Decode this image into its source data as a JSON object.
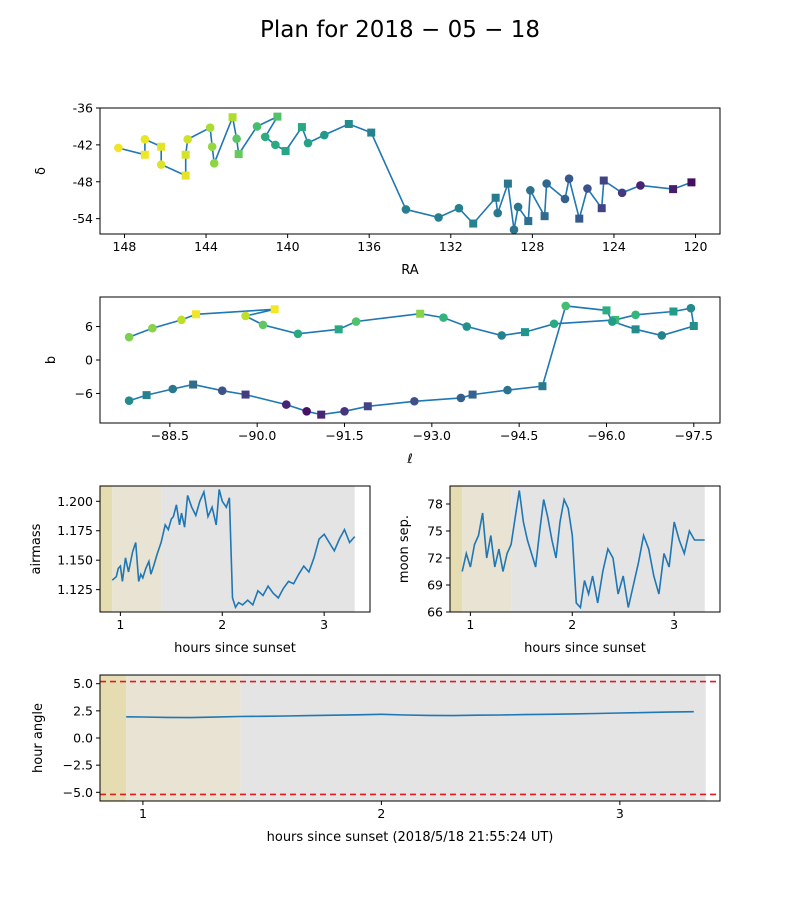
{
  "figure": {
    "title": "Plan for 2018 − 05 − 18"
  },
  "chart_data": [
    {
      "id": "radec",
      "type": "scatter",
      "xlabel": "RA",
      "ylabel": "δ",
      "xlim": [
        149.2,
        118.8
      ],
      "ylim": [
        -56.5,
        -36
      ],
      "xticks": [
        148,
        144,
        140,
        136,
        132,
        128,
        124,
        120
      ],
      "yticks": [
        -36,
        -42,
        -48,
        -54
      ],
      "colormap": "viridis",
      "x": [
        148.3,
        147.0,
        147.0,
        146.2,
        146.2,
        145.0,
        145.0,
        144.9,
        143.8,
        143.7,
        143.6,
        142.7,
        142.5,
        142.4,
        141.5,
        140.5,
        141.1,
        140.6,
        140.1,
        139.3,
        139.0,
        138.2,
        137.0,
        135.9,
        134.2,
        132.6,
        131.6,
        130.9,
        129.8,
        129.7,
        129.2,
        128.9,
        128.7,
        128.2,
        128.1,
        127.4,
        127.3,
        126.4,
        126.2,
        125.7,
        125.3,
        124.6,
        124.5,
        123.6,
        122.7,
        121.1,
        120.2
      ],
      "y": [
        -42.5,
        -43.6,
        -41.1,
        -42.3,
        -45.2,
        -47.0,
        -43.6,
        -41.1,
        -39.2,
        -42.3,
        -45.0,
        -37.5,
        -41.0,
        -43.5,
        -39.0,
        -37.4,
        -40.7,
        -42.0,
        -43.0,
        -39.1,
        -41.7,
        -40.4,
        -38.6,
        -40.0,
        -52.5,
        -53.8,
        -52.3,
        -54.8,
        -50.6,
        -53.1,
        -48.3,
        -55.8,
        -52.1,
        -54.4,
        -49.4,
        -53.6,
        -48.3,
        -50.8,
        -47.5,
        -54.0,
        -49.1,
        -52.3,
        -47.8,
        -49.8,
        -48.6,
        -49.2,
        -48.1
      ],
      "color_value": [
        0.98,
        0.98,
        0.97,
        0.96,
        0.95,
        0.96,
        0.94,
        0.93,
        0.87,
        0.84,
        0.83,
        0.88,
        0.74,
        0.76,
        0.7,
        0.72,
        0.62,
        0.61,
        0.59,
        0.6,
        0.58,
        0.53,
        0.48,
        0.45,
        0.43,
        0.43,
        0.44,
        0.45,
        0.42,
        0.4,
        0.39,
        0.38,
        0.39,
        0.36,
        0.37,
        0.35,
        0.33,
        0.3,
        0.27,
        0.28,
        0.25,
        0.2,
        0.2,
        0.17,
        0.1,
        0.08,
        0.04
      ],
      "marker": [
        "o",
        "s",
        "o",
        "s",
        "o",
        "s",
        "s",
        "o",
        "o",
        "o",
        "o",
        "s",
        "o",
        "s",
        "o",
        "s",
        "o",
        "o",
        "s",
        "s",
        "o",
        "o",
        "s",
        "s",
        "o",
        "o",
        "o",
        "s",
        "s",
        "o",
        "s",
        "o",
        "o",
        "s",
        "o",
        "s",
        "o",
        "o",
        "o",
        "s",
        "o",
        "s",
        "s",
        "o",
        "o",
        "s",
        "s"
      ]
    },
    {
      "id": "galactic",
      "type": "scatter",
      "xlabel": "ℓ",
      "ylabel": "b",
      "xlim": [
        -87.3,
        -97.95
      ],
      "ylim": [
        -11.3,
        11.3
      ],
      "xticks": [
        -88.5,
        -90.0,
        -91.5,
        -93.0,
        -94.5,
        -96.0,
        -97.5
      ],
      "xticklabels": [
        "−88.5",
        "−90.0",
        "−91.5",
        "−93.0",
        "−94.5",
        "−96.0",
        "−97.5"
      ],
      "yticks": [
        6,
        0,
        -6
      ],
      "yticklabels": [
        "6",
        "0",
        "−6"
      ],
      "colormap": "viridis",
      "x": [
        -87.8,
        -88.2,
        -88.7,
        -88.95,
        -90.3,
        -89.8,
        -90.1,
        -90.7,
        -91.4,
        -91.7,
        -92.8,
        -93.2,
        -93.6,
        -94.2,
        -94.6,
        -95.1,
        -96.15,
        -96.5,
        -97.15,
        -97.45,
        -97.5,
        -96.95,
        -96.5,
        -96.1,
        -96.0,
        -95.3,
        -94.9,
        -94.3,
        -93.7,
        -93.5,
        -92.7,
        -91.9,
        -91.5,
        -91.1,
        -90.85,
        -90.5,
        -89.8,
        -89.4,
        -88.9,
        -88.55,
        -88.1,
        -87.8
      ],
      "y": [
        4.1,
        5.7,
        7.2,
        8.2,
        9.1,
        7.9,
        6.3,
        4.7,
        5.5,
        6.9,
        8.3,
        7.6,
        6.0,
        4.4,
        5.0,
        6.5,
        7.2,
        8.1,
        8.7,
        9.3,
        6.1,
        4.4,
        5.5,
        6.9,
        8.9,
        9.7,
        -4.7,
        -5.4,
        -6.2,
        -6.8,
        -7.4,
        -8.3,
        -9.2,
        -9.8,
        -9.2,
        -8.0,
        -6.2,
        -5.5,
        -4.4,
        -5.2,
        -6.3,
        -7.3
      ],
      "color_value": [
        0.8,
        0.82,
        0.9,
        0.98,
        0.99,
        0.9,
        0.75,
        0.6,
        0.6,
        0.72,
        0.82,
        0.65,
        0.5,
        0.45,
        0.52,
        0.6,
        0.68,
        0.66,
        0.55,
        0.48,
        0.5,
        0.44,
        0.48,
        0.55,
        0.62,
        0.7,
        0.42,
        0.38,
        0.32,
        0.3,
        0.25,
        0.2,
        0.15,
        0.1,
        0.05,
        0.1,
        0.18,
        0.25,
        0.35,
        0.4,
        0.45,
        0.48
      ],
      "marker": [
        "o",
        "o",
        "o",
        "s",
        "s",
        "o",
        "o",
        "o",
        "s",
        "o",
        "s",
        "o",
        "o",
        "o",
        "s",
        "o",
        "s",
        "o",
        "s",
        "o",
        "s",
        "o",
        "s",
        "o",
        "s",
        "o",
        "s",
        "o",
        "s",
        "o",
        "o",
        "s",
        "o",
        "s",
        "o",
        "o",
        "s",
        "o",
        "s",
        "o",
        "s",
        "o"
      ]
    },
    {
      "id": "airmass",
      "type": "line",
      "xlabel": "hours since sunset",
      "ylabel": "airmass",
      "xlim": [
        0.8,
        3.45
      ],
      "ylim": [
        1.106,
        1.213
      ],
      "xticks": [
        1,
        2,
        3
      ],
      "yticks": [
        1.125,
        1.15,
        1.175,
        1.2
      ],
      "yticklabels": [
        "1.125",
        "1.150",
        "1.175",
        "1.200"
      ],
      "shading": [
        {
          "x": [
            0.8,
            0.92
          ],
          "color": "#e6dcb1"
        },
        {
          "x": [
            0.92,
            1.4
          ],
          "color": "#e8e3d2"
        },
        {
          "x": [
            1.4,
            3.3
          ],
          "color": "#e4e4e4"
        }
      ],
      "x": [
        0.92,
        0.96,
        0.98,
        1.0,
        1.02,
        1.05,
        1.08,
        1.12,
        1.15,
        1.18,
        1.2,
        1.22,
        1.25,
        1.28,
        1.3,
        1.33,
        1.36,
        1.4,
        1.44,
        1.47,
        1.5,
        1.52,
        1.55,
        1.58,
        1.6,
        1.63,
        1.66,
        1.7,
        1.74,
        1.78,
        1.82,
        1.86,
        1.9,
        1.94,
        1.97,
        2.0,
        2.04,
        2.07,
        2.1,
        2.13,
        2.16,
        2.2,
        2.25,
        2.3,
        2.35,
        2.4,
        2.45,
        2.5,
        2.55,
        2.6,
        2.65,
        2.7,
        2.75,
        2.8,
        2.85,
        2.9,
        2.95,
        3.0,
        3.05,
        3.1,
        3.15,
        3.2,
        3.25,
        3.3
      ],
      "y": [
        1.133,
        1.136,
        1.143,
        1.145,
        1.132,
        1.152,
        1.14,
        1.157,
        1.165,
        1.132,
        1.138,
        1.135,
        1.143,
        1.149,
        1.138,
        1.146,
        1.155,
        1.165,
        1.18,
        1.176,
        1.185,
        1.187,
        1.197,
        1.18,
        1.19,
        1.178,
        1.205,
        1.195,
        1.188,
        1.2,
        1.208,
        1.187,
        1.195,
        1.18,
        1.21,
        1.2,
        1.195,
        1.203,
        1.118,
        1.11,
        1.114,
        1.112,
        1.116,
        1.112,
        1.124,
        1.12,
        1.128,
        1.122,
        1.118,
        1.126,
        1.132,
        1.13,
        1.138,
        1.145,
        1.14,
        1.152,
        1.168,
        1.172,
        1.165,
        1.158,
        1.168,
        1.176,
        1.165,
        1.17
      ]
    },
    {
      "id": "moonsep",
      "type": "line",
      "xlabel": "hours since sunset",
      "ylabel": "moon sep.",
      "xlim": [
        0.8,
        3.45
      ],
      "ylim": [
        66,
        80
      ],
      "xticks": [
        1,
        2,
        3
      ],
      "yticks": [
        66,
        69,
        72,
        75,
        78
      ],
      "shading": [
        {
          "x": [
            0.8,
            0.92
          ],
          "color": "#e6dcb1"
        },
        {
          "x": [
            0.92,
            1.4
          ],
          "color": "#e8e3d2"
        },
        {
          "x": [
            1.4,
            3.3
          ],
          "color": "#e4e4e4"
        }
      ],
      "x": [
        0.92,
        0.96,
        1.0,
        1.04,
        1.08,
        1.12,
        1.16,
        1.2,
        1.24,
        1.28,
        1.32,
        1.36,
        1.4,
        1.44,
        1.48,
        1.52,
        1.56,
        1.6,
        1.64,
        1.68,
        1.72,
        1.76,
        1.8,
        1.84,
        1.88,
        1.92,
        1.96,
        2.0,
        2.04,
        2.08,
        2.12,
        2.16,
        2.2,
        2.25,
        2.3,
        2.35,
        2.4,
        2.45,
        2.5,
        2.55,
        2.6,
        2.65,
        2.7,
        2.75,
        2.8,
        2.85,
        2.9,
        2.95,
        3.0,
        3.05,
        3.1,
        3.15,
        3.2,
        3.25,
        3.3
      ],
      "y": [
        70.5,
        72.5,
        71.0,
        73.5,
        74.5,
        77.0,
        72.0,
        74.5,
        71.0,
        73.0,
        70.5,
        72.5,
        73.5,
        76.5,
        79.5,
        76.0,
        74.0,
        72.5,
        71.0,
        75.0,
        78.5,
        76.5,
        74.0,
        72.0,
        76.0,
        78.5,
        77.5,
        74.5,
        67.0,
        66.5,
        69.5,
        68.0,
        70.0,
        67.0,
        70.5,
        73.0,
        72.0,
        68.0,
        70.0,
        66.5,
        69.0,
        71.5,
        74.5,
        73.0,
        70.0,
        68.0,
        72.5,
        71.0,
        76.0,
        74.0,
        72.5,
        75.0,
        74.0,
        74.0,
        74.0
      ]
    },
    {
      "id": "hourangle",
      "type": "line",
      "xlabel": "hours since sunset (2018/5/18 21:55:24 UT)",
      "ylabel": "hour angle",
      "xlim": [
        0.82,
        3.42
      ],
      "ylim": [
        -5.8,
        5.8
      ],
      "xticks": [
        1,
        2,
        3
      ],
      "yticks": [
        5.0,
        2.5,
        0.0,
        -2.5,
        -5.0
      ],
      "yticklabels": [
        "5.0",
        "2.5",
        "0.0",
        "−2.5",
        "−5.0"
      ],
      "hlines": [
        5.2,
        -5.2
      ],
      "shading": [
        {
          "x": [
            0.82,
            0.93
          ],
          "color": "#e6dcb1"
        },
        {
          "x": [
            0.93,
            1.41
          ],
          "color": "#e8e3d2"
        },
        {
          "x": [
            1.41,
            3.36
          ],
          "color": "#e4e4e4"
        }
      ],
      "x": [
        0.93,
        1.0,
        1.1,
        1.2,
        1.3,
        1.4,
        1.5,
        1.6,
        1.7,
        1.8,
        1.9,
        2.0,
        2.1,
        2.2,
        2.3,
        2.4,
        2.5,
        2.6,
        2.7,
        2.8,
        2.9,
        3.0,
        3.1,
        3.2,
        3.31
      ],
      "y": [
        1.95,
        1.93,
        1.9,
        1.88,
        1.92,
        1.98,
        2.0,
        2.03,
        2.06,
        2.1,
        2.14,
        2.18,
        2.12,
        2.08,
        2.06,
        2.1,
        2.12,
        2.15,
        2.18,
        2.22,
        2.26,
        2.3,
        2.34,
        2.38,
        2.42
      ]
    }
  ]
}
